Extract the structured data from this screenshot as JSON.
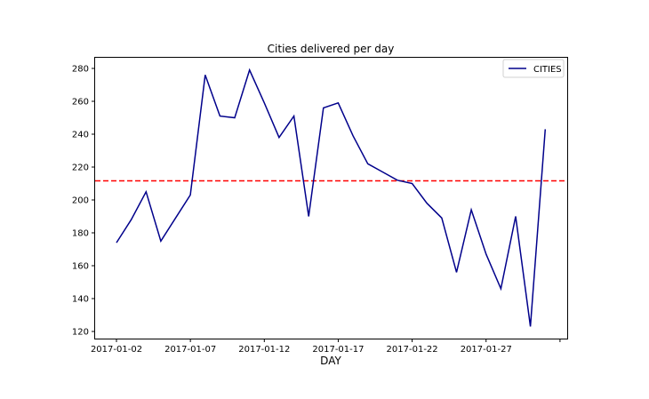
{
  "chart_data": {
    "type": "line",
    "title": "Cities delivered per day",
    "xlabel": "DAY",
    "ylabel": "",
    "x": [
      "2017-01-02",
      "2017-01-03",
      "2017-01-04",
      "2017-01-05",
      "2017-01-06",
      "2017-01-07",
      "2017-01-08",
      "2017-01-09",
      "2017-01-10",
      "2017-01-11",
      "2017-01-12",
      "2017-01-13",
      "2017-01-14",
      "2017-01-15",
      "2017-01-16",
      "2017-01-17",
      "2017-01-18",
      "2017-01-19",
      "2017-01-20",
      "2017-01-21",
      "2017-01-22",
      "2017-01-23",
      "2017-01-24",
      "2017-01-25",
      "2017-01-26",
      "2017-01-27",
      "2017-01-28",
      "2017-01-29",
      "2017-01-30",
      "2017-01-31"
    ],
    "series": [
      {
        "name": "CITIES",
        "color": "#00008b",
        "values": [
          174,
          188,
          205,
          175,
          189,
          203,
          276,
          251,
          250,
          279,
          259,
          238,
          251,
          190,
          256,
          259,
          239,
          222,
          217,
          212,
          210,
          198,
          189,
          156,
          194,
          167,
          146,
          190,
          123,
          243
        ]
      }
    ],
    "reference_line": {
      "y": 211.6,
      "color": "#ff0000",
      "style": "dashed"
    },
    "yticks": [
      120,
      140,
      160,
      180,
      200,
      220,
      240,
      260,
      280
    ],
    "xtick_labels": [
      "2017-01-02",
      "2017-01-07",
      "2017-01-12",
      "2017-01-17",
      "2017-01-22",
      "2017-01-27",
      ""
    ],
    "ylim": [
      115,
      287
    ],
    "xlim": [
      "2017-01-00.5",
      "2017-02-01.5"
    ],
    "grid": false,
    "legend_position": "upper right"
  }
}
